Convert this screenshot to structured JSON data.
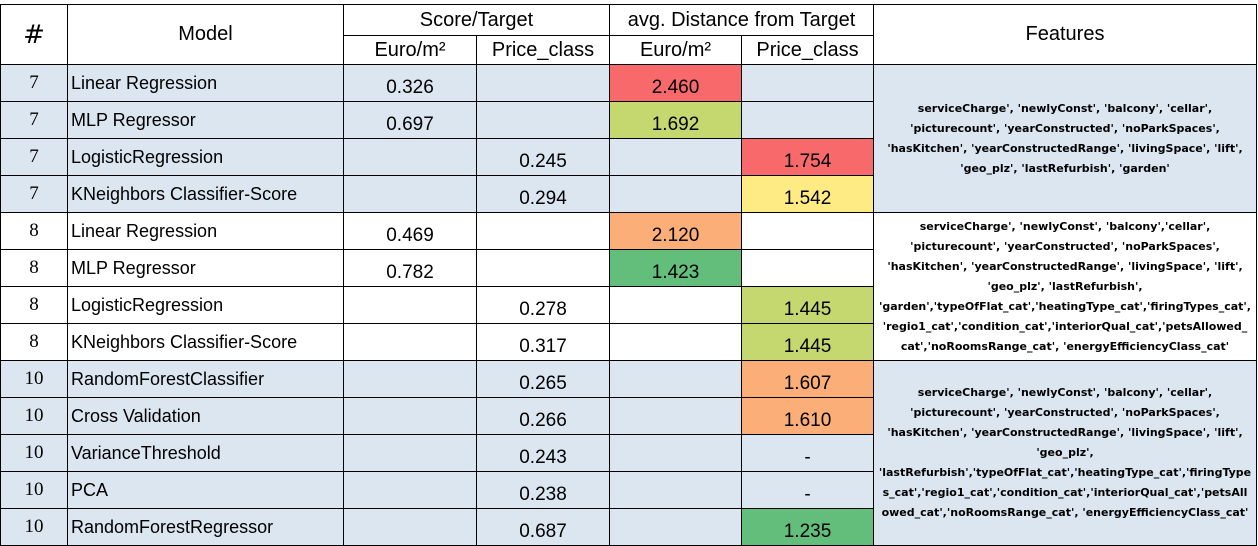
{
  "headers": {
    "hash": "#",
    "model": "Model",
    "score_target": "Score/Target",
    "avg_distance": "avg. Distance from Target",
    "features": "Features",
    "euro": "Euro/m²",
    "price_class": "Price_class"
  },
  "rows": [
    {
      "num": "7",
      "model": "Linear Regression",
      "score_euro": "0.326",
      "score_price": "",
      "dist_euro": "2.460",
      "dist_price": ""
    },
    {
      "num": "7",
      "model": "MLP Regressor",
      "score_euro": "0.697",
      "score_price": "",
      "dist_euro": "1.692",
      "dist_price": ""
    },
    {
      "num": "7",
      "model": "LogisticRegression",
      "score_euro": "",
      "score_price": "0.245",
      "dist_euro": "",
      "dist_price": "1.754"
    },
    {
      "num": "7",
      "model": "KNeighbors Classifier-Score",
      "score_euro": "",
      "score_price": "0.294",
      "dist_euro": "",
      "dist_price": "1.542"
    },
    {
      "num": "8",
      "model": "Linear Regression",
      "score_euro": "0.469",
      "score_price": "",
      "dist_euro": "2.120",
      "dist_price": ""
    },
    {
      "num": "8",
      "model": "MLP Regressor",
      "score_euro": "0.782",
      "score_price": "",
      "dist_euro": "1.423",
      "dist_price": ""
    },
    {
      "num": "8",
      "model": "LogisticRegression",
      "score_euro": "",
      "score_price": "0.278",
      "dist_euro": "",
      "dist_price": "1.445"
    },
    {
      "num": "8",
      "model": "KNeighbors Classifier-Score",
      "score_euro": "",
      "score_price": "0.317",
      "dist_euro": "",
      "dist_price": "1.445"
    },
    {
      "num": "10",
      "model": "RandomForestClassifier",
      "score_euro": "",
      "score_price": "0.265",
      "dist_euro": "",
      "dist_price": "1.607"
    },
    {
      "num": "10",
      "model": "Cross Validation",
      "score_euro": "",
      "score_price": "0.266",
      "dist_euro": "",
      "dist_price": "1.610"
    },
    {
      "num": "10",
      "model": "VarianceThreshold",
      "score_euro": "",
      "score_price": "0.243",
      "dist_euro": "",
      "dist_price": "-"
    },
    {
      "num": "10",
      "model": "PCA",
      "score_euro": "",
      "score_price": "0.238",
      "dist_euro": "",
      "dist_price": "-"
    },
    {
      "num": "10",
      "model": "RandomForestRegressor",
      "score_euro": "",
      "score_price": "0.687",
      "dist_euro": "",
      "dist_price": "1.235"
    }
  ],
  "features": {
    "group7": [
      "serviceCharge', 'newlyConst', 'balcony', 'cellar',",
      "'picturecount', 'yearConstructed', 'noParkSpaces',",
      "'hasKitchen', 'yearConstructedRange', 'livingSpace', 'lift',",
      "'geo_plz', 'lastRefurbish', 'garden'"
    ],
    "group8": [
      "serviceCharge', 'newlyConst', 'balcony','cellar',",
      "'picturecount', 'yearConstructed', 'noParkSpaces',",
      "'hasKitchen', 'yearConstructedRange', 'livingSpace', 'lift',",
      "'geo_plz', 'lastRefurbish',",
      "'garden','typeOfFlat_cat','heatingType_cat','firingTypes_cat',",
      "'regio1_cat','condition_cat','interiorQual_cat','petsAllowed_",
      "cat','noRoomsRange_cat', 'energyEfficiencyClass_cat'"
    ],
    "group10": [
      "serviceCharge', 'newlyConst', 'balcony', 'cellar',",
      "'picturecount', 'yearConstructed', 'noParkSpaces',",
      "'hasKitchen', 'yearConstructedRange', 'livingSpace', 'lift',",
      "'geo_plz',",
      "'lastRefurbish','typeOfFlat_cat','heatingType_cat','firingType",
      "s_cat','regio1_cat','condition_cat','interiorQual_cat','petsAll",
      "owed_cat','noRoomsRange_cat', 'energyEfficiencyClass_cat'"
    ]
  },
  "colors": {
    "header_bg": "#ffffff",
    "row_blue": "#dce6f1",
    "heat_red": "#f8696b",
    "heat_orange": "#fbae78",
    "heat_yellow": "#ffeb84",
    "heat_lightgreen": "#c4d86f",
    "heat_green": "#63be7b"
  }
}
